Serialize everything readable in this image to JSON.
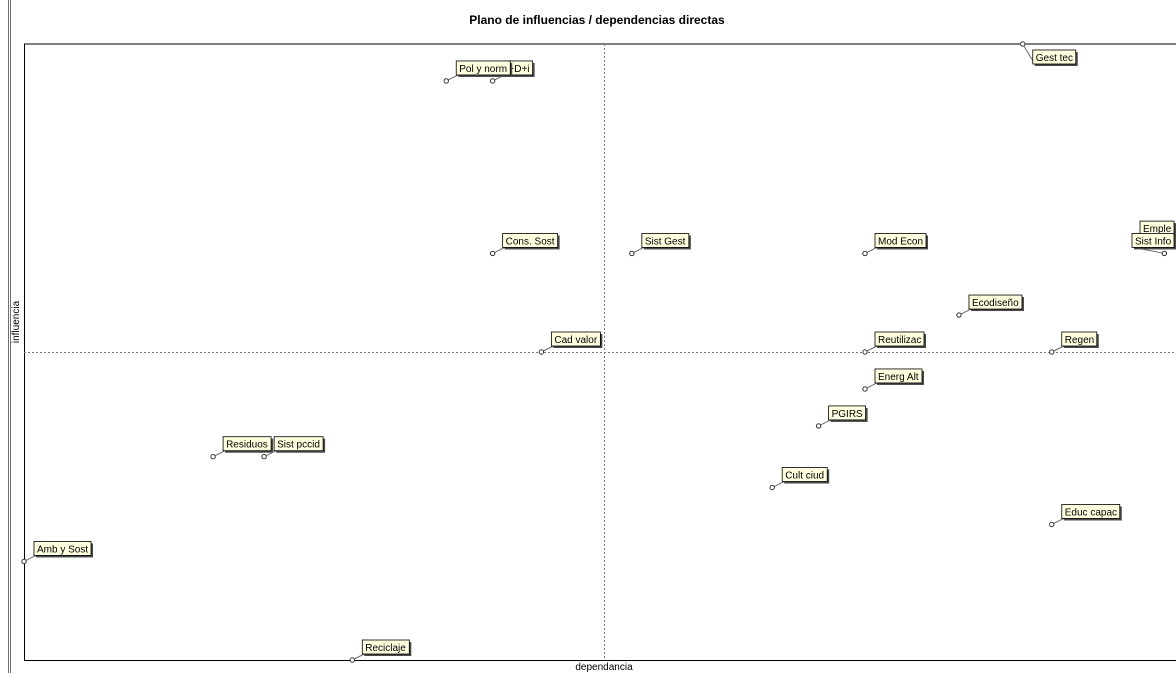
{
  "chart_data": {
    "type": "scatter",
    "title": "Plano de influencias / dependencias directas",
    "xlabel": "dependancia",
    "ylabel": "influencia",
    "xlim": [
      0,
      100
    ],
    "ylim": [
      0,
      100
    ],
    "x_divider": 50,
    "y_divider": 50,
    "grid": false,
    "legend": "none",
    "colors": {
      "label_fill": "#ffffe0",
      "label_shadow": "#4a4a4a",
      "frame": "#000000",
      "divider": "#7a7a7a"
    },
    "points": [
      {
        "label": "Gest tec",
        "x": 86.1,
        "y": 100
      },
      {
        "label": "I+D+i",
        "x": 40.4,
        "y": 94
      },
      {
        "label": "Pol y norm",
        "x": 36.4,
        "y": 94
      },
      {
        "label": "Emple",
        "x": 100,
        "y": 68
      },
      {
        "label": "Cons. Sost",
        "x": 40.4,
        "y": 66
      },
      {
        "label": "Sist Gest",
        "x": 52.4,
        "y": 66
      },
      {
        "label": "Mod Econ",
        "x": 72.5,
        "y": 66
      },
      {
        "label": "Sist Info",
        "x": 98.3,
        "y": 66
      },
      {
        "label": "Cad valor",
        "x": 44.6,
        "y": 50
      },
      {
        "label": "Reutilizac",
        "x": 72.5,
        "y": 50
      },
      {
        "label": "Ecodiseño",
        "x": 80.6,
        "y": 56
      },
      {
        "label": "Regen",
        "x": 88.6,
        "y": 50
      },
      {
        "label": "Energ Alt",
        "x": 72.5,
        "y": 44
      },
      {
        "label": "PGIRS",
        "x": 68.5,
        "y": 38
      },
      {
        "label": "Residuos",
        "x": 16.3,
        "y": 33
      },
      {
        "label": "Sist pccid",
        "x": 20.7,
        "y": 33
      },
      {
        "label": "Cult ciud",
        "x": 64.5,
        "y": 28
      },
      {
        "label": "Educ capac",
        "x": 88.6,
        "y": 22
      },
      {
        "label": "Amb y Sost",
        "x": 0,
        "y": 16
      },
      {
        "label": "Reciclaje",
        "x": 28.3,
        "y": 0
      }
    ]
  }
}
